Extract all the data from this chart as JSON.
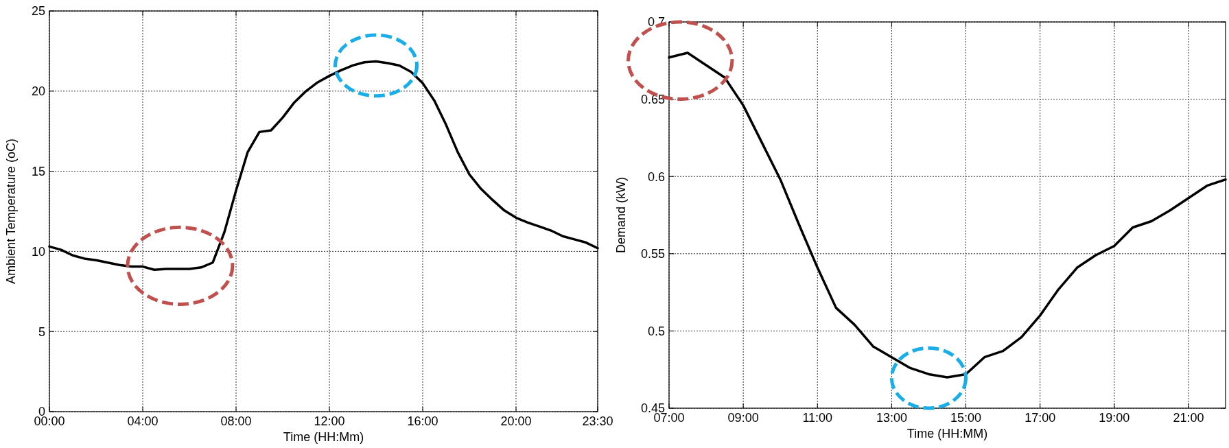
{
  "chart_data": [
    {
      "type": "line",
      "xlabel": "Time (HH:Mm)",
      "ylabel": "Ambient Temperature (oC)",
      "x": [
        0,
        0.5,
        1,
        1.5,
        2,
        2.5,
        3,
        3.5,
        4,
        4.5,
        5,
        5.5,
        6,
        6.5,
        7,
        7.5,
        8,
        8.5,
        9,
        9.5,
        10,
        10.5,
        11,
        11.5,
        12,
        12.5,
        13,
        13.5,
        14,
        14.5,
        15,
        15.5,
        16,
        16.5,
        17,
        17.5,
        18,
        18.5,
        19,
        19.5,
        20,
        20.5,
        21,
        21.5,
        22,
        22.5,
        23,
        23.5
      ],
      "series": [
        {
          "color": "#000000",
          "values": [
            10.3,
            10.1,
            9.75,
            9.55,
            9.45,
            9.3,
            9.15,
            9.05,
            9.05,
            8.85,
            8.9,
            8.9,
            8.9,
            9.0,
            9.3,
            11.2,
            13.8,
            16.2,
            17.45,
            17.55,
            18.35,
            19.3,
            20.0,
            20.55,
            20.95,
            21.3,
            21.6,
            21.8,
            21.85,
            21.75,
            21.6,
            21.2,
            20.5,
            19.4,
            17.9,
            16.2,
            14.8,
            13.9,
            13.2,
            12.55,
            12.1,
            11.8,
            11.55,
            11.3,
            10.95,
            10.75,
            10.55,
            10.2
          ]
        }
      ],
      "xlim": [
        0,
        23.5
      ],
      "xticks": [
        {
          "value": 0,
          "label": "00:00"
        },
        {
          "value": 4,
          "label": "04:00"
        },
        {
          "value": 8,
          "label": "08:00"
        },
        {
          "value": 12,
          "label": "12:00"
        },
        {
          "value": 16,
          "label": "16:00"
        },
        {
          "value": 20,
          "label": "20:00"
        },
        {
          "value": 23.5,
          "label": "23:30"
        }
      ],
      "ylim": [
        0,
        25
      ],
      "yticks": [
        0,
        5,
        10,
        15,
        20,
        25
      ],
      "grid": true,
      "line_style": "solid",
      "marker": "none"
    },
    {
      "type": "line",
      "xlabel": "Time (HH:MM)",
      "ylabel": "Demand (kW)",
      "x": [
        7,
        7.5,
        8,
        8.5,
        9,
        9.5,
        10,
        10.5,
        11,
        11.5,
        12,
        12.5,
        13,
        13.5,
        14,
        14.5,
        15,
        15.5,
        16,
        16.5,
        17,
        17.5,
        18,
        18.5,
        19,
        19.5,
        20,
        20.5,
        21,
        21.5,
        22
      ],
      "series": [
        {
          "color": "#000000",
          "values": [
            0.677,
            0.68,
            0.672,
            0.664,
            0.646,
            0.622,
            0.598,
            0.569,
            0.541,
            0.515,
            0.504,
            0.49,
            0.483,
            0.476,
            0.472,
            0.47,
            0.472,
            0.483,
            0.487,
            0.496,
            0.51,
            0.527,
            0.541,
            0.549,
            0.555,
            0.567,
            0.571,
            0.578,
            0.586,
            0.594,
            0.598
          ]
        }
      ],
      "xlim": [
        7,
        22
      ],
      "xticks": [
        {
          "value": 7,
          "label": "07:00"
        },
        {
          "value": 9,
          "label": "09:00"
        },
        {
          "value": 11,
          "label": "11:00"
        },
        {
          "value": 13,
          "label": "13:00"
        },
        {
          "value": 15,
          "label": "15:00"
        },
        {
          "value": 17,
          "label": "17:00"
        },
        {
          "value": 19,
          "label": "19:00"
        },
        {
          "value": 21,
          "label": "21:00"
        }
      ],
      "ylim": [
        0.45,
        0.7
      ],
      "yticks": [
        0.45,
        0.5,
        0.55,
        0.6,
        0.65,
        0.7
      ],
      "grid": true,
      "line_style": "solid",
      "marker": "none"
    }
  ]
}
